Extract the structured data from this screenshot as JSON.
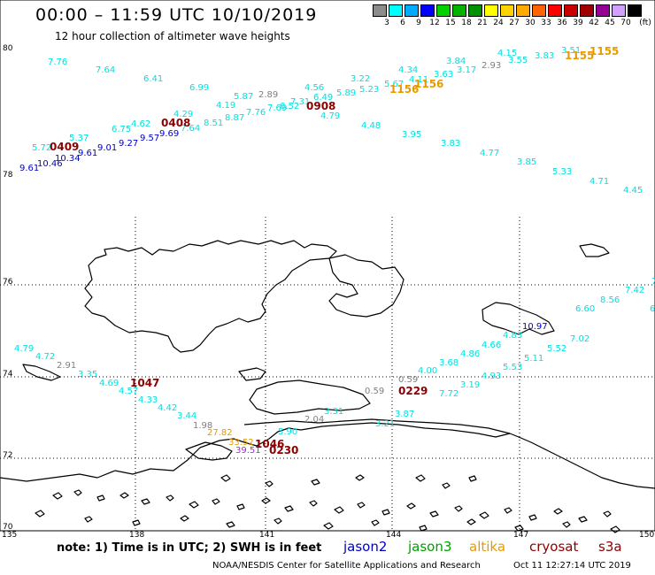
{
  "header": {
    "title": "00:00 – 11:59 UTC 10/10/2019",
    "subtitle": "12 hour collection of altimeter wave heights"
  },
  "legend": {
    "unit": "(ft)",
    "bins": [
      {
        "label": "3",
        "color": "#8c8c8c"
      },
      {
        "label": "6",
        "color": "#00ffff"
      },
      {
        "label": "9",
        "color": "#00aaff"
      },
      {
        "label": "12",
        "color": "#0000ff"
      },
      {
        "label": "15",
        "color": "#00d200"
      },
      {
        "label": "18",
        "color": "#00b400"
      },
      {
        "label": "21",
        "color": "#009100"
      },
      {
        "label": "24",
        "color": "#ffff00"
      },
      {
        "label": "27",
        "color": "#ffd200"
      },
      {
        "label": "30",
        "color": "#ffaa00"
      },
      {
        "label": "33",
        "color": "#ff6400"
      },
      {
        "label": "36",
        "color": "#ff0000"
      },
      {
        "label": "39",
        "color": "#c80000"
      },
      {
        "label": "42",
        "color": "#a00000"
      },
      {
        "label": "45",
        "color": "#960096"
      },
      {
        "label": "70",
        "color": "#d2a0ff"
      },
      {
        "label": "",
        "color": "#000000"
      }
    ]
  },
  "axes": {
    "lat_labels": [
      "80",
      "78",
      "76",
      "74",
      "72",
      "70"
    ],
    "lon_labels": [
      "135",
      "138",
      "141",
      "144",
      "147",
      "150"
    ]
  },
  "map_layers": [
    "coastline",
    "lat-lon-grid",
    "altimeter-tracks"
  ],
  "colors": {
    "cyan": "#00e1e1",
    "blue": "#0000c8",
    "gray": "#7f7f7f",
    "orange": "#e69b00",
    "darkred": "#8b0000",
    "purple": "#9b30d0",
    "green": "#00a000"
  },
  "wave_heights": [
    {
      "text": "7.76",
      "c": "cyan"
    },
    {
      "text": "7.64",
      "c": "cyan"
    },
    {
      "text": "6.41",
      "c": "cyan"
    },
    {
      "text": "6.99",
      "c": "cyan"
    },
    {
      "text": "5.87",
      "c": "cyan"
    },
    {
      "text": "2.89",
      "c": "gray"
    },
    {
      "text": "4.19",
      "c": "cyan"
    },
    {
      "text": "7.76",
      "c": "cyan"
    },
    {
      "text": "7.69",
      "c": "cyan"
    },
    {
      "text": "6.52",
      "c": "cyan"
    },
    {
      "text": "7.31",
      "c": "cyan"
    },
    {
      "text": "4.56",
      "c": "cyan"
    },
    {
      "text": "6.49",
      "c": "cyan"
    },
    {
      "text": "5.89",
      "c": "cyan"
    },
    {
      "text": "4.79",
      "c": "cyan"
    },
    {
      "text": "3.22",
      "c": "cyan"
    },
    {
      "text": "5.23",
      "c": "cyan"
    },
    {
      "text": "5.67",
      "c": "cyan"
    },
    {
      "text": "4.34",
      "c": "cyan"
    },
    {
      "text": "4.11",
      "c": "cyan"
    },
    {
      "text": "3.84",
      "c": "cyan"
    },
    {
      "text": "3.63",
      "c": "cyan"
    },
    {
      "text": "3.17",
      "c": "cyan"
    },
    {
      "text": "2.93",
      "c": "gray"
    },
    {
      "text": "4.15",
      "c": "cyan"
    },
    {
      "text": "3.55",
      "c": "cyan"
    },
    {
      "text": "3.83",
      "c": "cyan"
    },
    {
      "text": "3.51",
      "c": "cyan"
    },
    {
      "text": "4.29",
      "c": "cyan"
    },
    {
      "text": "8.51",
      "c": "cyan"
    },
    {
      "text": "8.87",
      "c": "cyan"
    },
    {
      "text": "7.64",
      "c": "cyan"
    },
    {
      "text": "4.62",
      "c": "cyan"
    },
    {
      "text": "6.75",
      "c": "cyan"
    },
    {
      "text": "9.69",
      "c": "blue"
    },
    {
      "text": "5.37",
      "c": "cyan"
    },
    {
      "text": "9.57",
      "c": "blue"
    },
    {
      "text": "9.27",
      "c": "blue"
    },
    {
      "text": "9.01",
      "c": "blue"
    },
    {
      "text": "5.72",
      "c": "cyan"
    },
    {
      "text": "9.61",
      "c": "blue"
    },
    {
      "text": "10.34",
      "c": "blue"
    },
    {
      "text": "10.46",
      "c": "blue"
    },
    {
      "text": "9.61",
      "c": "blue"
    },
    {
      "text": "4.48",
      "c": "cyan"
    },
    {
      "text": "3.95",
      "c": "cyan"
    },
    {
      "text": "3.83",
      "c": "cyan"
    },
    {
      "text": "4.77",
      "c": "cyan"
    },
    {
      "text": "3.85",
      "c": "cyan"
    },
    {
      "text": "5.33",
      "c": "cyan"
    },
    {
      "text": "4.71",
      "c": "cyan"
    },
    {
      "text": "4.45",
      "c": "cyan"
    },
    {
      "text": "7.42",
      "c": "cyan"
    },
    {
      "text": "8.56",
      "c": "cyan"
    },
    {
      "text": "6.60",
      "c": "cyan"
    },
    {
      "text": "6",
      "c": "cyan"
    },
    {
      "text": "7",
      "c": "cyan"
    },
    {
      "text": "10.97",
      "c": "blue"
    },
    {
      "text": "4.83",
      "c": "cyan"
    },
    {
      "text": "7.02",
      "c": "cyan"
    },
    {
      "text": "4.66",
      "c": "cyan"
    },
    {
      "text": "5.52",
      "c": "cyan"
    },
    {
      "text": "4.86",
      "c": "cyan"
    },
    {
      "text": "5.11",
      "c": "cyan"
    },
    {
      "text": "3.68",
      "c": "cyan"
    },
    {
      "text": "5.53",
      "c": "cyan"
    },
    {
      "text": "4.00",
      "c": "cyan"
    },
    {
      "text": "4.93",
      "c": "cyan"
    },
    {
      "text": "0.59",
      "c": "gray"
    },
    {
      "text": "3.19",
      "c": "cyan"
    },
    {
      "text": "7.72",
      "c": "cyan"
    },
    {
      "text": "0.59",
      "c": "gray"
    },
    {
      "text": "3.87",
      "c": "cyan"
    },
    {
      "text": "3.21",
      "c": "cyan"
    },
    {
      "text": "3.31",
      "c": "cyan"
    },
    {
      "text": "2.04",
      "c": "gray"
    },
    {
      "text": "5.90",
      "c": "cyan"
    },
    {
      "text": "4.79",
      "c": "cyan"
    },
    {
      "text": "4.72",
      "c": "cyan"
    },
    {
      "text": "2.91",
      "c": "gray"
    },
    {
      "text": "3.35",
      "c": "cyan"
    },
    {
      "text": "4.69",
      "c": "cyan"
    },
    {
      "text": "4.57",
      "c": "cyan"
    },
    {
      "text": "4.33",
      "c": "cyan"
    },
    {
      "text": "4.42",
      "c": "cyan"
    },
    {
      "text": "3.44",
      "c": "cyan"
    },
    {
      "text": "1.98",
      "c": "gray"
    },
    {
      "text": "27.82",
      "c": "orange"
    },
    {
      "text": "39.51",
      "c": "purple"
    },
    {
      "text": "33.52",
      "c": "orange"
    }
  ],
  "pass_times": [
    {
      "text": "0409",
      "c": "darkred"
    },
    {
      "text": "0408",
      "c": "darkred"
    },
    {
      "text": "0908",
      "c": "darkred"
    },
    {
      "text": "1156",
      "c": "orange"
    },
    {
      "text": "1156",
      "c": "orange"
    },
    {
      "text": "1155",
      "c": "orange"
    },
    {
      "text": "1155",
      "c": "orange"
    },
    {
      "text": "1047",
      "c": "darkred"
    },
    {
      "text": "0229",
      "c": "darkred"
    },
    {
      "text": "1046",
      "c": "darkred"
    },
    {
      "text": "0230",
      "c": "darkred"
    }
  ],
  "footer": {
    "note": "note:  1) Time is in UTC;  2) SWH is in feet",
    "satellites": [
      {
        "name": "jason2",
        "c": "blue"
      },
      {
        "name": "jason3",
        "c": "green"
      },
      {
        "name": "altika",
        "c": "orange"
      },
      {
        "name": "cryosat",
        "c": "darkred"
      },
      {
        "name": "s3a",
        "c": "darkred"
      }
    ],
    "credit": "NOAA/NESDIS Center for Satellite Applications and Research",
    "stamp": "Oct 11 12:27:14 UTC 2019"
  }
}
